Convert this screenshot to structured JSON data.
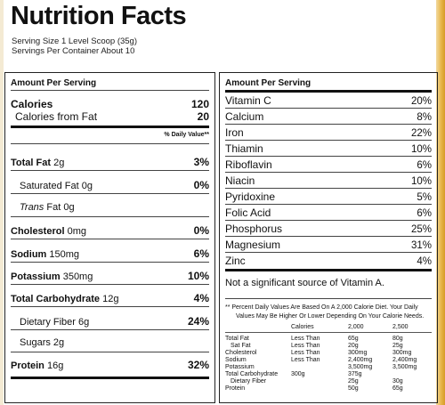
{
  "title": "Nutrition Facts",
  "serving_size": "Serving Size 1 Level Scoop (35g)",
  "servings_per_container": "Servings Per Container About 10",
  "left": {
    "amount_per_serving": "Amount Per Serving",
    "calories": {
      "label": "Calories",
      "value": "120"
    },
    "calories_fat": {
      "label": "Calories from Fat",
      "value": "20"
    },
    "dv_header": "% Daily Value**",
    "rows": [
      {
        "name": "Total Fat",
        "amount": "2g",
        "dv": "3%"
      },
      {
        "name": "Saturated Fat",
        "amount": "0g",
        "dv": "0%"
      },
      {
        "name": "Trans",
        "name2": "Fat",
        "amount": "0g",
        "dv": ""
      },
      {
        "name": "Cholesterol",
        "amount": "0mg",
        "dv": "0%"
      },
      {
        "name": "Sodium",
        "amount": "150mg",
        "dv": "6%"
      },
      {
        "name": "Potassium",
        "amount": "350mg",
        "dv": "10%"
      },
      {
        "name": "Total Carbohydrate",
        "amount": "12g",
        "dv": "4%"
      },
      {
        "name": "Dietary Fiber",
        "amount": "6g",
        "dv": "24%"
      },
      {
        "name": "Sugars",
        "amount": "2g",
        "dv": ""
      },
      {
        "name": "Protein",
        "amount": "16g",
        "dv": "32%"
      }
    ]
  },
  "right": {
    "amount_per_serving": "Amount Per Serving",
    "vitamins": [
      {
        "name": "Vitamin C",
        "dv": "20%"
      },
      {
        "name": "Calcium",
        "dv": "8%"
      },
      {
        "name": "Iron",
        "dv": "22%"
      },
      {
        "name": "Thiamin",
        "dv": "10%"
      },
      {
        "name": "Riboflavin",
        "dv": "6%"
      },
      {
        "name": "Niacin",
        "dv": "10%"
      },
      {
        "name": "Pyridoxine",
        "dv": "5%"
      },
      {
        "name": "Folic Acid",
        "dv": "6%"
      },
      {
        "name": "Phosphorus",
        "dv": "25%"
      },
      {
        "name": "Magnesium",
        "dv": "31%"
      },
      {
        "name": "Zinc",
        "dv": "4%"
      }
    ],
    "not_significant": "Not a significant source of Vitamin A.",
    "footnote_line1": "** Percent Daily Values Are Based On A 2,000 Calorie Diet. Your Daily",
    "footnote_line2": "Values May Be Higher Or Lower Depending On Your Calorie Needs.",
    "table": {
      "headers": [
        "Calories",
        "2,000",
        "2,500"
      ],
      "rows": [
        [
          "Total Fat",
          "Less Than",
          "65g",
          "80g"
        ],
        [
          "Sat Fat",
          "Less Than",
          "20g",
          "25g"
        ],
        [
          "Cholesterol",
          "Less Than",
          "300mg",
          "300mg"
        ],
        [
          "Sodium",
          "Less Than",
          "2,400mg",
          "2,400mg"
        ],
        [
          "Potassium",
          "",
          "3,500mg",
          "3,500mg"
        ],
        [
          "Total Carbohydrate",
          "300g",
          "375g",
          ""
        ],
        [
          "Dietary Fiber",
          "",
          "25g",
          "30g"
        ],
        [
          "Protein",
          "",
          "50g",
          "65g"
        ]
      ]
    }
  }
}
